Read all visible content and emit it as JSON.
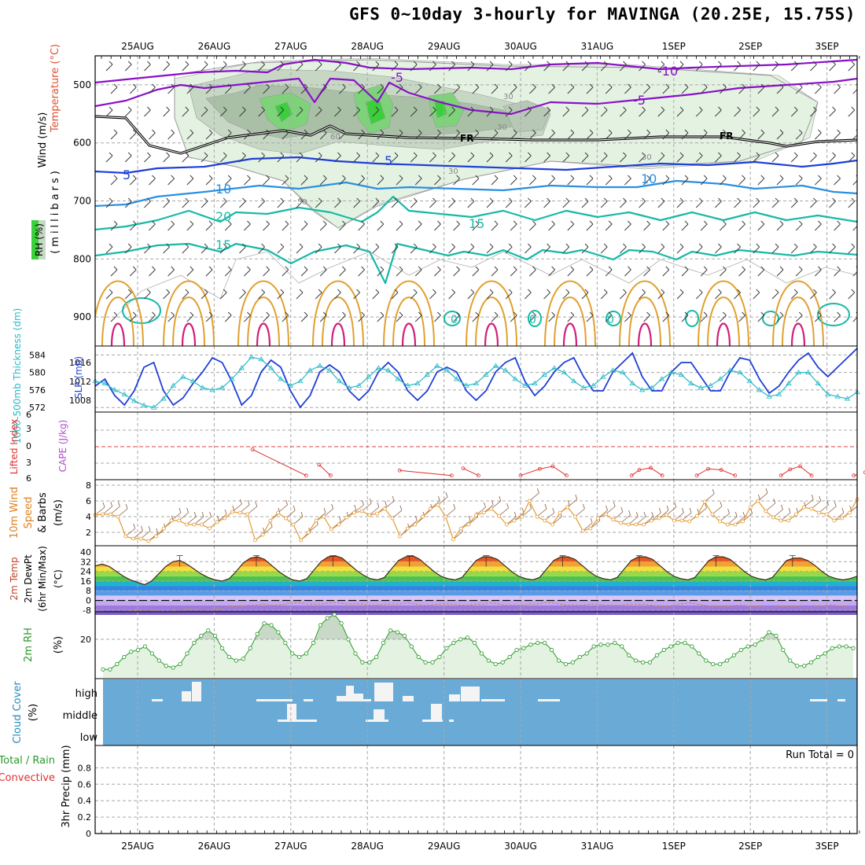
{
  "title": "GFS 0~10day 3-hourly for MAVINGA (20.25E, 15.75S)",
  "dates": [
    "25AUG",
    "26AUG",
    "27AUG",
    "28AUG",
    "29AUG",
    "30AUG",
    "31AUG",
    "1SEP",
    "2SEP",
    "3SEP"
  ],
  "colors": {
    "purple": "#8a10c8",
    "blue_dark": "#1f3fd6",
    "blue_mid": "#2a8fe0",
    "teal": "#17b9a6",
    "orange": "#e0a030",
    "red": "#e03030",
    "magenta": "#d0207a",
    "cloud_blue": "#6aaad6",
    "rh_green": "#5cc05c",
    "rh_fill": "#dff0df",
    "slp": "#1f3fd6",
    "thickness": "#2ab8c8",
    "wind_orange": "#e59a2f",
    "barb_brown": "#8a5a3a"
  },
  "chart_data": [
    {
      "id": "upper_air",
      "type": "contour",
      "ylabel_parts": [
        "Wind (m/s)",
        "Temperature (°C)",
        "(millibars)",
        "RH (%)"
      ],
      "yticks": [
        500,
        600,
        700,
        800,
        900
      ],
      "ylim": [
        450,
        950
      ],
      "contour_labels": [
        {
          "text": "-5",
          "color": "purple"
        },
        {
          "text": "-10",
          "color": "purple"
        },
        {
          "text": "-5",
          "color": "purple"
        },
        {
          "text": "FR",
          "color": "black"
        },
        {
          "text": "FR",
          "color": "black"
        },
        {
          "text": "5",
          "color": "blue_dark"
        },
        {
          "text": "5",
          "color": "blue_dark"
        },
        {
          "text": "10",
          "color": "blue_mid"
        },
        {
          "text": "10",
          "color": "blue_mid"
        },
        {
          "text": "15",
          "color": "teal"
        },
        {
          "text": "15",
          "color": "teal"
        },
        {
          "text": "20",
          "color": "teal"
        },
        {
          "text": "0",
          "color": "teal"
        },
        {
          "text": "0",
          "color": "teal"
        },
        {
          "text": "0",
          "color": "teal"
        },
        {
          "text": "30",
          "color": "gray"
        },
        {
          "text": "30",
          "color": "gray"
        },
        {
          "text": "30",
          "color": "gray"
        },
        {
          "text": "50",
          "color": "gray"
        },
        {
          "text": "60",
          "color": "gray"
        },
        {
          "text": "30",
          "color": "gray"
        }
      ]
    },
    {
      "id": "slp_thickness",
      "type": "line",
      "ylabel": "SLP (mb)",
      "ylabel2": "1000-500mb Thickness (dm)",
      "left_ticks": [
        "584",
        "580",
        "576",
        "572"
      ],
      "right_ticks": [
        "1016",
        "1012",
        "1008"
      ],
      "series": [
        {
          "name": "SLP",
          "color": "slp",
          "values": [
            1011,
            1012.5,
            1009,
            1007,
            1010,
            1015,
            1016,
            1010,
            1007,
            1008.5,
            1011.5,
            1014,
            1017,
            1016,
            1012,
            1007,
            1009,
            1014,
            1016.5,
            1015,
            1010,
            1006.5,
            1009,
            1014,
            1015.5,
            1014,
            1010,
            1008,
            1010,
            1014,
            1016,
            1014,
            1010,
            1008,
            1010,
            1014,
            1015,
            1014,
            1010,
            1008,
            1010,
            1014,
            1016,
            1017,
            1012,
            1009,
            1011,
            1014,
            1016,
            1017,
            1013,
            1010,
            1010,
            1014,
            1016,
            1018,
            1013,
            1010,
            1010,
            1014,
            1016,
            1016,
            1013,
            1010,
            1010,
            1014,
            1017,
            1016.5,
            1012.5,
            1009.5,
            1011,
            1014,
            1016.5,
            1018,
            1015,
            1013,
            1015,
            1017,
            1019
          ]
        },
        {
          "name": "Thickness",
          "color": "thickness",
          "values": [
            578,
            577.5,
            576,
            575,
            573.5,
            572.5,
            572,
            574,
            577,
            579,
            578,
            576.5,
            576,
            576.5,
            578.5,
            581,
            583.5,
            583,
            581,
            578.5,
            577,
            578,
            580.5,
            581.5,
            580.5,
            578,
            576.5,
            577,
            579,
            581,
            580.5,
            578.5,
            577,
            577.5,
            579.5,
            581.5,
            580.5,
            578.5,
            577,
            577.5,
            579.5,
            581.5,
            580.5,
            578.5,
            577,
            577.5,
            579.5,
            581,
            580,
            578,
            576.5,
            577,
            579,
            580.5,
            580,
            577.5,
            576,
            576.5,
            578.5,
            580,
            579.5,
            577.5,
            576.5,
            577,
            578.5,
            580.5,
            580,
            578,
            576,
            574.5,
            575,
            577.5,
            580,
            580,
            577.5,
            575,
            574.5,
            574,
            575.5
          ]
        }
      ]
    },
    {
      "id": "li_cape",
      "type": "line",
      "ylabel": "CAPE (J/kg)",
      "ylabel2": "Lifted Index",
      "yticks": [
        "6",
        "3",
        "0",
        "3",
        "6"
      ],
      "li_values": [
        {
          "x": 1.5,
          "y": -0.7
        },
        {
          "x": 2.2,
          "y": -5.8
        },
        {
          "x": 2.37,
          "y": -3.7
        },
        {
          "x": 2.52,
          "y": -5.8
        },
        {
          "x": 3.42,
          "y": -4.8
        },
        {
          "x": 4.1,
          "y": -5.8
        },
        {
          "x": 4.25,
          "y": -4.4
        },
        {
          "x": 4.45,
          "y": -5.8
        },
        {
          "x": 5.0,
          "y": -5.8
        },
        {
          "x": 5.25,
          "y": -4.5
        },
        {
          "x": 5.42,
          "y": -4.0
        },
        {
          "x": 5.6,
          "y": -5.8
        },
        {
          "x": 6.45,
          "y": -5.8
        },
        {
          "x": 6.55,
          "y": -4.7
        },
        {
          "x": 6.7,
          "y": -4.3
        },
        {
          "x": 6.85,
          "y": -5.8
        },
        {
          "x": 7.3,
          "y": -5.8
        },
        {
          "x": 7.45,
          "y": -4.5
        },
        {
          "x": 7.62,
          "y": -4.7
        },
        {
          "x": 7.8,
          "y": -5.8
        },
        {
          "x": 8.4,
          "y": -5.8
        },
        {
          "x": 8.52,
          "y": -4.6
        },
        {
          "x": 8.65,
          "y": -4.0
        },
        {
          "x": 8.8,
          "y": -5.8
        },
        {
          "x": 9.35,
          "y": -5.8
        },
        {
          "x": 9.5,
          "y": -5.2
        },
        {
          "x": 9.65,
          "y": -5.8
        }
      ]
    },
    {
      "id": "wind10m",
      "type": "line",
      "ylabel": "10m Wind Speed & Barbs (m/s)",
      "yticks": [
        "8",
        "6",
        "4",
        "2"
      ],
      "values": [
        4.2,
        4.3,
        4.3,
        4.0,
        1.5,
        1.2,
        1.2,
        0.9,
        1.5,
        2.5,
        3.5,
        3.5,
        3.0,
        3.0,
        3.0,
        2.5,
        3.3,
        3.8,
        4.6,
        4.5,
        4.3,
        1.0,
        1.7,
        3.5,
        4.5,
        3.8,
        3.0,
        1.0,
        2.0,
        3.5,
        4.0,
        2.4,
        3.0,
        3.9,
        4.5,
        4.7,
        4.2,
        4.4,
        5.0,
        3.8,
        1.5,
        2.5,
        3.0,
        4.0,
        5.0,
        5.5,
        4.0,
        1.1,
        2.5,
        3.0,
        4.2,
        4.5,
        5.0,
        4.1,
        3.0,
        3.5,
        4.0,
        6.0,
        4.0,
        3.5,
        3.0,
        4.5,
        5.2,
        4.0,
        2.2,
        2.5,
        3.8,
        4.3,
        3.6,
        3.2,
        3.0,
        3.0,
        3.0,
        3.5,
        3.8,
        4.2,
        3.5,
        3.5,
        3.4,
        4.1,
        5.9,
        4.3,
        3.4,
        3.0,
        3.0,
        3.4,
        5.2,
        6.0,
        4.7,
        3.9,
        3.5,
        3.5,
        4.3,
        5.2,
        5.0,
        4.5,
        4.3,
        3.5,
        3.8,
        4.5,
        6.2
      ]
    },
    {
      "id": "temp2m",
      "type": "area",
      "ylabel": "2m Temp 2m DewPt (6hr Min/Max) (°C)",
      "yticks": [
        "40",
        "32",
        "24",
        "16",
        "8",
        "0",
        "-8"
      ],
      "temp_values": [
        28.5,
        30,
        28,
        24,
        20,
        17,
        15,
        13,
        16,
        22,
        28,
        32,
        33,
        30,
        26,
        22,
        19,
        17,
        16,
        18,
        24,
        31,
        35,
        36,
        34,
        29,
        24,
        20,
        17,
        16,
        18,
        25,
        32,
        36,
        37,
        35,
        30,
        25,
        21,
        18,
        17,
        19,
        26,
        33,
        36,
        37,
        34,
        29,
        24,
        20,
        18,
        17,
        19,
        26,
        33,
        36,
        36,
        34,
        29,
        24,
        20,
        18,
        17,
        19,
        26,
        33,
        36,
        36,
        34,
        29,
        24,
        20,
        18,
        17,
        19,
        26,
        33,
        36,
        36,
        34,
        29,
        24,
        20,
        18,
        17,
        19,
        26,
        33,
        36,
        36,
        34,
        29,
        24,
        20,
        18,
        17,
        19,
        26,
        33,
        35,
        35,
        33,
        29,
        24,
        20,
        18,
        17,
        18,
        20
      ],
      "dew_values": [
        -9,
        -9,
        -10,
        -10,
        -9,
        -9,
        -8,
        -8,
        -9,
        -9,
        -9,
        -8,
        -7,
        -7,
        -8,
        -8,
        -7,
        -6,
        -5,
        -5,
        -4,
        -4,
        -3,
        -4,
        -4,
        -3,
        -2,
        -2,
        -3,
        -3,
        -3,
        -2,
        -2,
        -3,
        -3,
        -3,
        -4,
        -4,
        -3,
        -3,
        -3,
        -2,
        -3,
        -4,
        -4,
        -3,
        -3,
        -3,
        -4,
        -4,
        -3,
        -3,
        -2,
        -3,
        -4,
        -4,
        -4,
        -3,
        -3,
        -2,
        -2,
        -3,
        -4,
        -4,
        -4,
        -3,
        -3,
        -4,
        -4,
        -4,
        -3,
        -3,
        -3,
        -4,
        -5,
        -5,
        -4,
        -3,
        -2,
        -3,
        -4,
        -5,
        -5,
        -5,
        -4,
        -4,
        -5,
        -5,
        -6,
        -6,
        -5,
        -5,
        -5,
        -6,
        -6,
        -5,
        -4,
        -4,
        -5,
        -6,
        -6
      ]
    },
    {
      "id": "rh2m",
      "type": "area",
      "ylabel": "2m RH (%)",
      "yticks": [
        "20"
      ],
      "values": [
        3,
        3,
        6,
        10,
        13,
        14,
        16,
        12,
        8,
        5,
        4,
        6,
        12,
        18,
        22,
        25,
        22,
        15,
        10,
        8,
        9,
        15,
        23,
        29,
        28,
        24,
        18,
        12,
        10,
        12,
        18,
        28,
        32,
        34,
        29,
        20,
        12,
        7,
        7,
        10,
        18,
        25,
        24,
        22,
        16,
        10,
        7,
        7,
        10,
        15,
        18,
        20,
        21,
        18,
        12,
        8,
        6,
        7,
        10,
        14,
        15,
        17,
        18,
        18,
        14,
        8,
        6,
        7,
        10,
        12,
        16,
        17,
        17,
        18,
        16,
        11,
        8,
        7,
        7,
        11,
        14,
        16,
        18,
        18,
        16,
        12,
        8,
        6,
        6,
        8,
        11,
        14,
        16,
        17,
        20,
        24,
        22,
        14,
        8,
        5,
        5,
        7,
        10,
        12,
        15,
        16,
        16,
        15
      ]
    },
    {
      "id": "cloud",
      "type": "bar",
      "ylabel": "Cloud Cover (%)",
      "levels": [
        "high",
        "middle",
        "low"
      ]
    },
    {
      "id": "precip",
      "type": "bar",
      "ylabel": "3hr Precip (mm)",
      "ylabel_alt": "Total / Rain",
      "ylabel_conv": "Convective",
      "yticks": [
        "0.8",
        "0.6",
        "0.4",
        "0.2",
        "0"
      ],
      "run_total": "Run Total = 0",
      "values": []
    }
  ]
}
